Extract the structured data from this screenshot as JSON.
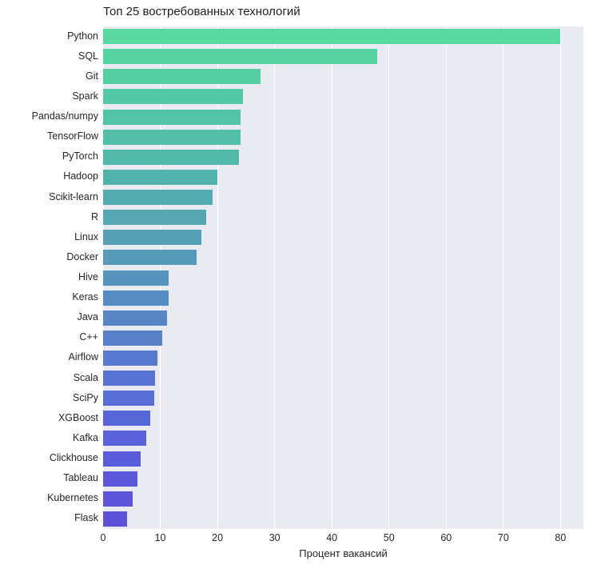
{
  "figure": {
    "background": "#ffffff",
    "plot_background": "#eaeaf2",
    "gridline_color": "#ffffff",
    "text_color": "#262626"
  },
  "chart_data": {
    "type": "bar",
    "orientation": "horizontal",
    "title": "Топ 25 востребованных технологий",
    "xlabel": "Процент вакансий",
    "ylabel": "",
    "xlim": [
      0,
      84
    ],
    "xticks": [
      0,
      10,
      20,
      30,
      40,
      50,
      60,
      70,
      80
    ],
    "grid": "vertical-white-on-lavender",
    "legend": "none",
    "categories": [
      "Python",
      "SQL",
      "Git",
      "Spark",
      "Pandas/numpy",
      "TensorFlow",
      "PyTorch",
      "Hadoop",
      "Scikit-learn",
      "R",
      "Linux",
      "Docker",
      "Hive",
      "Keras",
      "Java",
      "C++",
      "Airflow",
      "Scala",
      "SciPy",
      "XGBoost",
      "Kafka",
      "Clickhouse",
      "Tableau",
      "Kubernetes",
      "Flask"
    ],
    "values": [
      80,
      48,
      27.5,
      24.5,
      24,
      24,
      23.7,
      20,
      19.2,
      18,
      17.2,
      16.4,
      11.5,
      11.4,
      11.2,
      10.3,
      9.5,
      9.1,
      8.9,
      8.3,
      7.6,
      6.5,
      6,
      5.2,
      4.2
    ],
    "bar_colors": [
      "#57d9a1",
      "#55d4a2",
      "#54cfa4",
      "#53caa5",
      "#52c5a7",
      "#52bfa8",
      "#52b9aa",
      "#52b3ac",
      "#53adae",
      "#54a7b1",
      "#55a0b5",
      "#569ab9",
      "#5693bd",
      "#578cc2",
      "#5786c6",
      "#577fca",
      "#5779ce",
      "#5773d2",
      "#586dd5",
      "#5867d8",
      "#5962da",
      "#5a5ddb",
      "#5b58db",
      "#5c54da",
      "#5d51d9"
    ]
  }
}
